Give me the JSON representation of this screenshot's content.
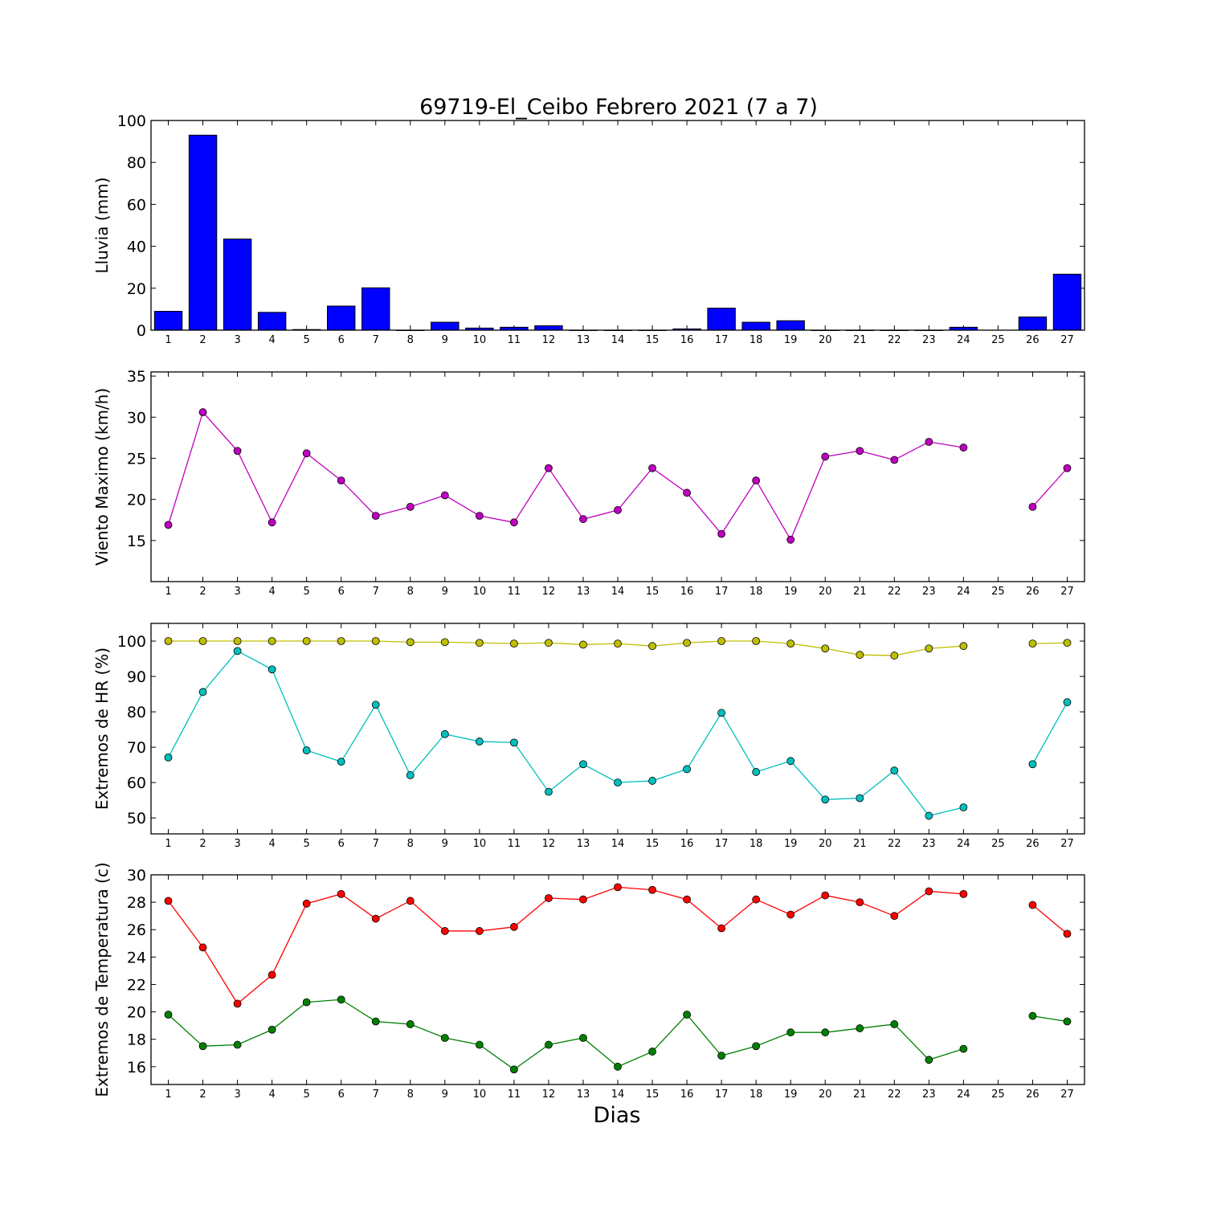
{
  "figure": {
    "title": "69719-El_Ceibo Febrero 2021  (7 a 7)",
    "xlabel": "Dias"
  },
  "chart_data": [
    {
      "type": "bar",
      "ylabel": "Lluvia (mm)",
      "ylim": [
        0,
        100
      ],
      "yticks": [
        0,
        20,
        40,
        60,
        80,
        100
      ],
      "categories": [
        "1",
        "2",
        "3",
        "4",
        "5",
        "6",
        "7",
        "8",
        "9",
        "10",
        "11",
        "12",
        "13",
        "14",
        "15",
        "16",
        "17",
        "18",
        "19",
        "20",
        "21",
        "22",
        "23",
        "24",
        "25",
        "26",
        "27"
      ],
      "series": [
        {
          "color": "#0000ff",
          "values": [
            9,
            93,
            43.5,
            8.5,
            0.3,
            11.5,
            20.2,
            0,
            3.8,
            1,
            1.4,
            2.1,
            0,
            0,
            0,
            0.6,
            10.5,
            3.8,
            4.5,
            0,
            0,
            0,
            0,
            1.4,
            null,
            6.3,
            26.7
          ]
        }
      ]
    },
    {
      "type": "line",
      "ylabel": "Viento Maximo (km/h)",
      "ylim": [
        10,
        35.5
      ],
      "yticks": [
        15,
        20,
        25,
        30,
        35
      ],
      "categories": [
        "1",
        "2",
        "3",
        "4",
        "5",
        "6",
        "7",
        "8",
        "9",
        "10",
        "11",
        "12",
        "13",
        "14",
        "15",
        "16",
        "17",
        "18",
        "19",
        "20",
        "21",
        "22",
        "23",
        "24",
        "25",
        "26",
        "27"
      ],
      "series": [
        {
          "color": "#bf00bf",
          "values": [
            16.9,
            30.6,
            25.9,
            17.2,
            25.6,
            22.3,
            18,
            19.1,
            20.5,
            18,
            17.2,
            23.8,
            17.6,
            18.7,
            23.8,
            20.8,
            15.8,
            22.3,
            15.1,
            25.2,
            25.9,
            24.8,
            27,
            26.3,
            null,
            19.1,
            23.8
          ]
        }
      ]
    },
    {
      "type": "line",
      "ylabel": "Extremos de HR (%)",
      "ylim": [
        45.5,
        105
      ],
      "yticks": [
        50,
        60,
        70,
        80,
        90,
        100
      ],
      "categories": [
        "1",
        "2",
        "3",
        "4",
        "5",
        "6",
        "7",
        "8",
        "9",
        "10",
        "11",
        "12",
        "13",
        "14",
        "15",
        "16",
        "17",
        "18",
        "19",
        "20",
        "21",
        "22",
        "23",
        "24",
        "25",
        "26",
        "27"
      ],
      "series": [
        {
          "color": "#bfbf00",
          "values": [
            100,
            100,
            100,
            100,
            100,
            100,
            100,
            99.7,
            99.7,
            99.5,
            99.3,
            99.5,
            99,
            99.3,
            98.6,
            99.5,
            100,
            100,
            99.3,
            97.9,
            96.1,
            95.9,
            97.9,
            98.6,
            null,
            99.3,
            99.5
          ]
        },
        {
          "color": "#00bfbf",
          "values": [
            67.1,
            85.6,
            97.2,
            92,
            69.1,
            65.9,
            82,
            62.1,
            73.7,
            71.6,
            71.3,
            57.4,
            65.2,
            60,
            60.5,
            63.8,
            79.7,
            63,
            66.1,
            55.2,
            55.6,
            63.4,
            50.6,
            53,
            null,
            65.2,
            82.7
          ]
        }
      ]
    },
    {
      "type": "line",
      "ylabel": "Extremos de Temperatura (c)",
      "ylim": [
        14.7,
        30
      ],
      "yticks": [
        16,
        18,
        20,
        22,
        24,
        26,
        28,
        30
      ],
      "categories": [
        "1",
        "2",
        "3",
        "4",
        "5",
        "6",
        "7",
        "8",
        "9",
        "10",
        "11",
        "12",
        "13",
        "14",
        "15",
        "16",
        "17",
        "18",
        "19",
        "20",
        "21",
        "22",
        "23",
        "24",
        "25",
        "26",
        "27"
      ],
      "series": [
        {
          "color": "#ff0000",
          "values": [
            28.1,
            24.7,
            20.6,
            22.7,
            27.9,
            28.6,
            26.8,
            28.1,
            25.9,
            25.9,
            26.2,
            28.3,
            28.2,
            29.1,
            28.9,
            28.2,
            26.1,
            28.2,
            27.1,
            28.5,
            28,
            27,
            28.8,
            28.6,
            null,
            27.8,
            25.7
          ]
        },
        {
          "color": "#008000",
          "values": [
            19.8,
            17.5,
            17.6,
            18.7,
            20.7,
            20.9,
            19.3,
            19.1,
            18.1,
            17.6,
            15.8,
            17.6,
            18.1,
            16,
            17.1,
            19.8,
            16.8,
            17.5,
            18.5,
            18.5,
            18.8,
            19.1,
            16.5,
            17.3,
            null,
            19.7,
            19.3
          ]
        }
      ]
    }
  ]
}
